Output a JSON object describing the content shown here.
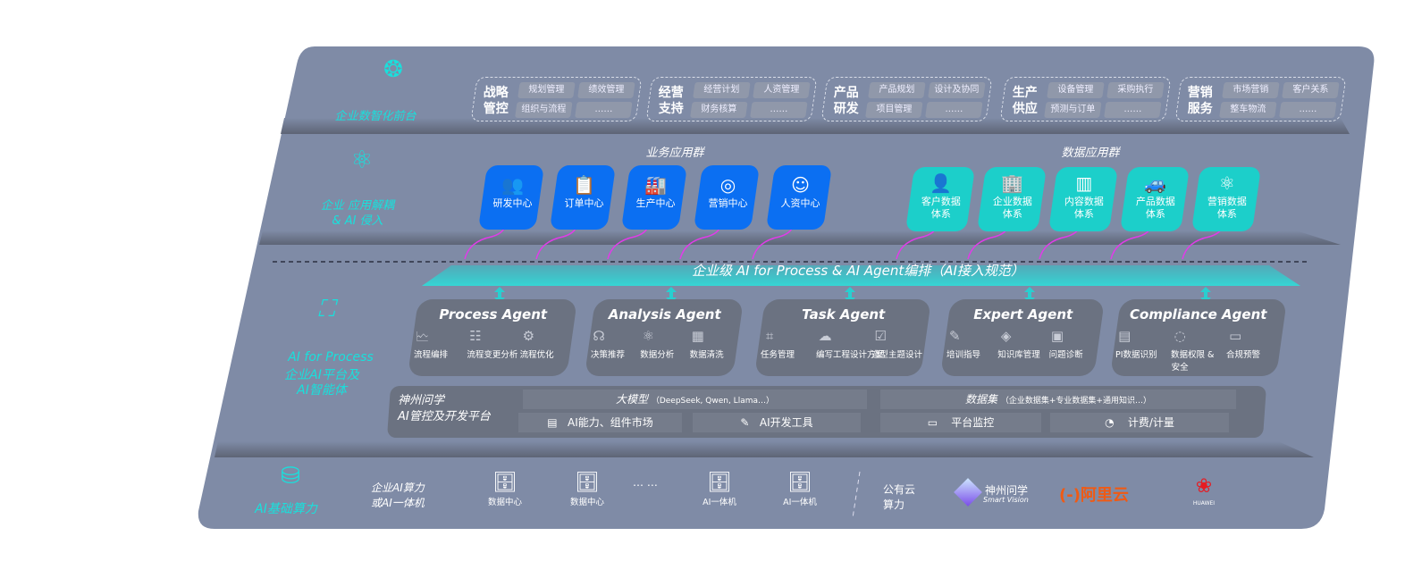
{
  "layers": {
    "front": {
      "label": "企业数智化前台",
      "icon": "brain-icon"
    },
    "apps": {
      "label": "企业 应用解耦\n& AI 侵入",
      "icon": "molecule-icon"
    },
    "ai": {
      "label_en": "AI for Process",
      "label_cn": "企业AI平台及\nAI智能体",
      "icon": "face-scan-icon"
    },
    "infra": {
      "label": "AI基础算力",
      "icon": "database-icon"
    }
  },
  "front_groups": [
    {
      "title": "战略\n管控",
      "items": [
        "规划管理",
        "绩效管理",
        "组织与流程",
        "……"
      ]
    },
    {
      "title": "经营\n支持",
      "items": [
        "经营计划",
        "人资管理",
        "财务核算",
        "……"
      ]
    },
    {
      "title": "产品\n研发",
      "items": [
        "产品规划",
        "设计及协同",
        "项目管理",
        "……"
      ]
    },
    {
      "title": "生产\n供应",
      "items": [
        "设备管理",
        "采购执行",
        "预测与订单",
        "……"
      ]
    },
    {
      "title": "营销\n服务",
      "items": [
        "市场营销",
        "客户关系",
        "整车物流",
        "……"
      ]
    }
  ],
  "business_apps": {
    "title": "业务应用群",
    "items": [
      {
        "label": "研发中心",
        "icon": "team-icon"
      },
      {
        "label": "订单中心",
        "icon": "clipboard-icon"
      },
      {
        "label": "生产中心",
        "icon": "factory-icon"
      },
      {
        "label": "营销中心",
        "icon": "target-icon"
      },
      {
        "label": "人资中心",
        "icon": "person-icon"
      }
    ]
  },
  "data_apps": {
    "title": "数据应用群",
    "items": [
      {
        "label": "客户数据\n体系",
        "icon": "user-icon"
      },
      {
        "label": "企业数据\n体系",
        "icon": "building-icon"
      },
      {
        "label": "内容数据\n体系",
        "icon": "books-icon"
      },
      {
        "label": "产品数据\n体系",
        "icon": "car-icon"
      },
      {
        "label": "营销数据\n体系",
        "icon": "atom-icon"
      }
    ]
  },
  "banner": "企业级 AI for Process & AI Agent编排（AI接入规范）",
  "agents": [
    {
      "title": "Process Agent",
      "items": [
        "流程编排",
        "流程变更分析",
        "流程优化"
      ]
    },
    {
      "title": "Analysis Agent",
      "items": [
        "决策推荐",
        "数据分析",
        "数据清洗"
      ]
    },
    {
      "title": "Task Agent",
      "items": [
        "任务管理",
        "编写工程设计方案",
        "造型主题设计"
      ]
    },
    {
      "title": "Expert Agent",
      "items": [
        "培训指导",
        "知识库管理",
        "问题诊断"
      ]
    },
    {
      "title": "Compliance Agent",
      "items": [
        "PI数据识别",
        "数据权限 &\n安全",
        "合规预警"
      ]
    }
  ],
  "platform": {
    "title": "神州问学\nAI管控及开发平台",
    "model": "大模型",
    "model_note": "（DeepSeek, Qwen, Llama…）",
    "dataset": "数据集",
    "dataset_note": "（企业数据集+专业数据集+通用知识…）",
    "market": "AI能力、组件市场",
    "devtools": "AI开发工具",
    "monitor": "平台监控",
    "billing": "计费/计量"
  },
  "infra": {
    "private_label": "企业AI算力\n或AI一体机",
    "servers": [
      "数据中心",
      "数据中心",
      "AI一体机",
      "AI一体机"
    ],
    "ellipsis": "… …",
    "public_label": "公有云\n算力",
    "vendors": {
      "sv_cn": "神州问学",
      "sv_en": "Smart Vision",
      "aliyun": "阿里云",
      "huawei": "HUAWEI"
    }
  },
  "colors": {
    "panel": "#7f8ba6",
    "accent": "#19e0dc",
    "blue": "#0b6ff2",
    "teal": "#1ccfca",
    "arrow": "#e03ce8",
    "aliyun": "#f05a14",
    "huawei": "#e51c23"
  }
}
